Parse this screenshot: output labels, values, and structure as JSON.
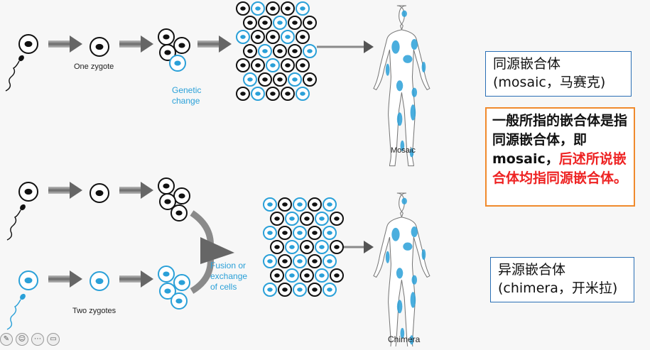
{
  "diagram": {
    "top_row": {
      "one_zygote_label": "One zygote",
      "genetic_change_label": [
        "Genetic",
        "change"
      ],
      "mosaic_label": "Mosaic"
    },
    "bottom_row": {
      "two_zygotes_label": "Two zygotes",
      "fusion_label": [
        "Fusion or",
        "exchange",
        "of cells"
      ],
      "chimera_label": "Chimera"
    }
  },
  "notes": {
    "mosaic_box": {
      "line1": "同源嵌合体",
      "line2": "(mosaic，马赛克)"
    },
    "note_box": {
      "black_text": "一般所指的嵌合体是指同源嵌合体，即mosaic，",
      "red_text": "后述所说嵌合体均指同源嵌合体。"
    },
    "chimera_box": {
      "line1": "异源嵌合体",
      "line2": "(chimera，开米拉)"
    }
  },
  "colors": {
    "blue_cell": "#2aa0d8",
    "black_cell": "#111111",
    "arrow_gray": "#666666",
    "box_border_blue": "#2a6fb5",
    "box_border_orange": "#f08a2c",
    "red_text": "#ee2222"
  },
  "toolbar": {
    "icons": [
      "pen-icon",
      "comment-icon",
      "more-icon",
      "screen-icon"
    ]
  }
}
